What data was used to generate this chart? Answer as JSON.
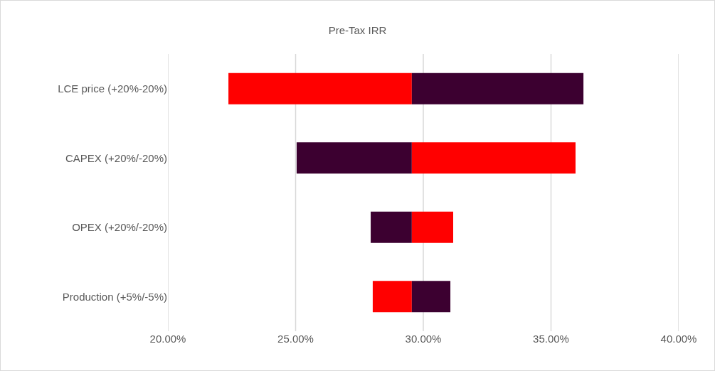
{
  "chart_data": {
    "type": "bar",
    "title": "Pre-Tax IRR",
    "orientation": "horizontal",
    "categories": [
      "LCE price (+20%-20%)",
      "CAPEX (+20%/-20%)",
      "OPEX (+20%/-20%)",
      "Production (+5%/-5%)"
    ],
    "series": [
      {
        "colors": [
          "#ff0000",
          "#3c0030",
          "#3c0030",
          "#ff0000"
        ],
        "base": [
          22.37,
          25.04,
          27.94,
          28.02
        ],
        "values": [
          7.18,
          4.51,
          1.61,
          1.53
        ]
      },
      {
        "colors": [
          "#3c0030",
          "#ff0000",
          "#ff0000",
          "#3c0030"
        ],
        "base": [
          29.55,
          29.55,
          29.55,
          29.55
        ],
        "values": [
          6.72,
          6.41,
          1.62,
          1.51
        ]
      }
    ],
    "xlim": [
      20,
      40
    ],
    "xticks": [
      {
        "value": 20,
        "label": "20.00%"
      },
      {
        "value": 25,
        "label": "25.00%"
      },
      {
        "value": 30,
        "label": "30.00%"
      },
      {
        "value": 35,
        "label": "35.00%"
      },
      {
        "value": 40,
        "label": "40.00%"
      }
    ],
    "grid": "x"
  }
}
